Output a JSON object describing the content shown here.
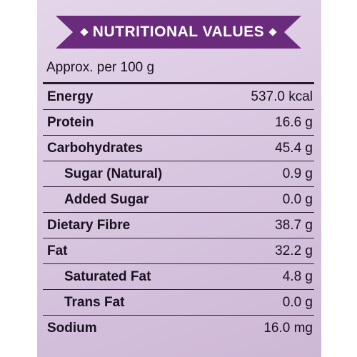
{
  "header": {
    "title": "NUTRITIONAL VALUES"
  },
  "serving": "Approx. per 100 g",
  "table": {
    "rows": [
      {
        "label": "Energy",
        "value": "537.0 kcal"
      },
      {
        "label": "Protein",
        "value": "16.6 g"
      },
      {
        "label": "Carbohydrates",
        "value": "45.4 g",
        "sub": [
          {
            "label": "Sugar (Natural)",
            "value": "0.9 g"
          },
          {
            "label": "Added Sugar",
            "value": "0.0 g"
          }
        ]
      },
      {
        "label": "Dietary Fibre",
        "value": "38.7 g"
      },
      {
        "label": "Fat",
        "value": "32.2 g",
        "sub": [
          {
            "label": "Saturated Fat",
            "value": "4.8 g"
          },
          {
            "label": "Trans Fat",
            "value": "0.0 g"
          }
        ]
      },
      {
        "label": "Sodium",
        "value": "16.0 mg"
      }
    ]
  }
}
